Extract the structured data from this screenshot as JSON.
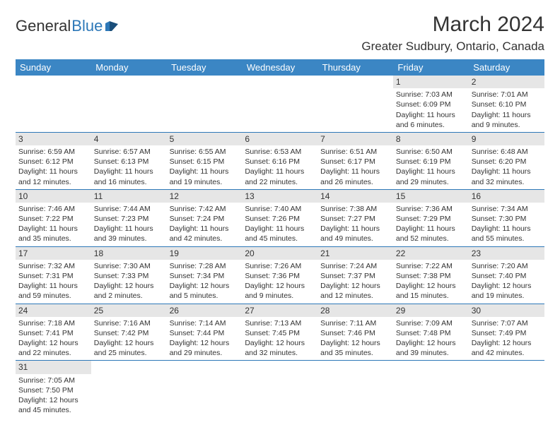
{
  "logo": {
    "part1": "General",
    "part2": "Blue"
  },
  "title": "March 2024",
  "location": "Greater Sudbury, Ontario, Canada",
  "colors": {
    "header_bg": "#3b86c4",
    "header_text": "#ffffff",
    "daynum_bg": "#e6e6e6",
    "border": "#2d78b8",
    "text": "#333333",
    "logo_accent": "#2d78b8"
  },
  "weekdays": [
    "Sunday",
    "Monday",
    "Tuesday",
    "Wednesday",
    "Thursday",
    "Friday",
    "Saturday"
  ],
  "weeks": [
    [
      null,
      null,
      null,
      null,
      null,
      {
        "n": "1",
        "sr": "Sunrise: 7:03 AM",
        "ss": "Sunset: 6:09 PM",
        "dl": "Daylight: 11 hours and 6 minutes."
      },
      {
        "n": "2",
        "sr": "Sunrise: 7:01 AM",
        "ss": "Sunset: 6:10 PM",
        "dl": "Daylight: 11 hours and 9 minutes."
      }
    ],
    [
      {
        "n": "3",
        "sr": "Sunrise: 6:59 AM",
        "ss": "Sunset: 6:12 PM",
        "dl": "Daylight: 11 hours and 12 minutes."
      },
      {
        "n": "4",
        "sr": "Sunrise: 6:57 AM",
        "ss": "Sunset: 6:13 PM",
        "dl": "Daylight: 11 hours and 16 minutes."
      },
      {
        "n": "5",
        "sr": "Sunrise: 6:55 AM",
        "ss": "Sunset: 6:15 PM",
        "dl": "Daylight: 11 hours and 19 minutes."
      },
      {
        "n": "6",
        "sr": "Sunrise: 6:53 AM",
        "ss": "Sunset: 6:16 PM",
        "dl": "Daylight: 11 hours and 22 minutes."
      },
      {
        "n": "7",
        "sr": "Sunrise: 6:51 AM",
        "ss": "Sunset: 6:17 PM",
        "dl": "Daylight: 11 hours and 26 minutes."
      },
      {
        "n": "8",
        "sr": "Sunrise: 6:50 AM",
        "ss": "Sunset: 6:19 PM",
        "dl": "Daylight: 11 hours and 29 minutes."
      },
      {
        "n": "9",
        "sr": "Sunrise: 6:48 AM",
        "ss": "Sunset: 6:20 PM",
        "dl": "Daylight: 11 hours and 32 minutes."
      }
    ],
    [
      {
        "n": "10",
        "sr": "Sunrise: 7:46 AM",
        "ss": "Sunset: 7:22 PM",
        "dl": "Daylight: 11 hours and 35 minutes."
      },
      {
        "n": "11",
        "sr": "Sunrise: 7:44 AM",
        "ss": "Sunset: 7:23 PM",
        "dl": "Daylight: 11 hours and 39 minutes."
      },
      {
        "n": "12",
        "sr": "Sunrise: 7:42 AM",
        "ss": "Sunset: 7:24 PM",
        "dl": "Daylight: 11 hours and 42 minutes."
      },
      {
        "n": "13",
        "sr": "Sunrise: 7:40 AM",
        "ss": "Sunset: 7:26 PM",
        "dl": "Daylight: 11 hours and 45 minutes."
      },
      {
        "n": "14",
        "sr": "Sunrise: 7:38 AM",
        "ss": "Sunset: 7:27 PM",
        "dl": "Daylight: 11 hours and 49 minutes."
      },
      {
        "n": "15",
        "sr": "Sunrise: 7:36 AM",
        "ss": "Sunset: 7:29 PM",
        "dl": "Daylight: 11 hours and 52 minutes."
      },
      {
        "n": "16",
        "sr": "Sunrise: 7:34 AM",
        "ss": "Sunset: 7:30 PM",
        "dl": "Daylight: 11 hours and 55 minutes."
      }
    ],
    [
      {
        "n": "17",
        "sr": "Sunrise: 7:32 AM",
        "ss": "Sunset: 7:31 PM",
        "dl": "Daylight: 11 hours and 59 minutes."
      },
      {
        "n": "18",
        "sr": "Sunrise: 7:30 AM",
        "ss": "Sunset: 7:33 PM",
        "dl": "Daylight: 12 hours and 2 minutes."
      },
      {
        "n": "19",
        "sr": "Sunrise: 7:28 AM",
        "ss": "Sunset: 7:34 PM",
        "dl": "Daylight: 12 hours and 5 minutes."
      },
      {
        "n": "20",
        "sr": "Sunrise: 7:26 AM",
        "ss": "Sunset: 7:36 PM",
        "dl": "Daylight: 12 hours and 9 minutes."
      },
      {
        "n": "21",
        "sr": "Sunrise: 7:24 AM",
        "ss": "Sunset: 7:37 PM",
        "dl": "Daylight: 12 hours and 12 minutes."
      },
      {
        "n": "22",
        "sr": "Sunrise: 7:22 AM",
        "ss": "Sunset: 7:38 PM",
        "dl": "Daylight: 12 hours and 15 minutes."
      },
      {
        "n": "23",
        "sr": "Sunrise: 7:20 AM",
        "ss": "Sunset: 7:40 PM",
        "dl": "Daylight: 12 hours and 19 minutes."
      }
    ],
    [
      {
        "n": "24",
        "sr": "Sunrise: 7:18 AM",
        "ss": "Sunset: 7:41 PM",
        "dl": "Daylight: 12 hours and 22 minutes."
      },
      {
        "n": "25",
        "sr": "Sunrise: 7:16 AM",
        "ss": "Sunset: 7:42 PM",
        "dl": "Daylight: 12 hours and 25 minutes."
      },
      {
        "n": "26",
        "sr": "Sunrise: 7:14 AM",
        "ss": "Sunset: 7:44 PM",
        "dl": "Daylight: 12 hours and 29 minutes."
      },
      {
        "n": "27",
        "sr": "Sunrise: 7:13 AM",
        "ss": "Sunset: 7:45 PM",
        "dl": "Daylight: 12 hours and 32 minutes."
      },
      {
        "n": "28",
        "sr": "Sunrise: 7:11 AM",
        "ss": "Sunset: 7:46 PM",
        "dl": "Daylight: 12 hours and 35 minutes."
      },
      {
        "n": "29",
        "sr": "Sunrise: 7:09 AM",
        "ss": "Sunset: 7:48 PM",
        "dl": "Daylight: 12 hours and 39 minutes."
      },
      {
        "n": "30",
        "sr": "Sunrise: 7:07 AM",
        "ss": "Sunset: 7:49 PM",
        "dl": "Daylight: 12 hours and 42 minutes."
      }
    ],
    [
      {
        "n": "31",
        "sr": "Sunrise: 7:05 AM",
        "ss": "Sunset: 7:50 PM",
        "dl": "Daylight: 12 hours and 45 minutes."
      },
      null,
      null,
      null,
      null,
      null,
      null
    ]
  ]
}
